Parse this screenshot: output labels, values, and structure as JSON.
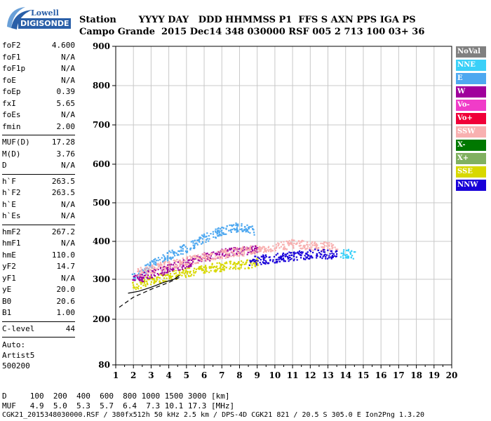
{
  "logo": {
    "line1": "Lowell",
    "line2": "DIGISONDE"
  },
  "header": {
    "row1": "Station       YYYY DAY   DDD HHMMSS P1  FFS S AXN PPS IGA PS",
    "row2": "Campo Grande  2015 Dec14 348 030000 RSF 005 2 713 100 03+ 36"
  },
  "params": [
    [
      {
        "k": "foF2",
        "v": "4.600"
      },
      {
        "k": "foF1",
        "v": "N/A"
      },
      {
        "k": "foF1p",
        "v": "N/A"
      },
      {
        "k": "foE",
        "v": "N/A"
      },
      {
        "k": "foEp",
        "v": "0.39"
      },
      {
        "k": "fxI",
        "v": "5.65"
      },
      {
        "k": "foEs",
        "v": "N/A"
      },
      {
        "k": "fmin",
        "v": "2.00"
      }
    ],
    [
      {
        "k": "MUF(D)",
        "v": "17.28"
      },
      {
        "k": "M(D)",
        "v": "3.76"
      },
      {
        "k": "D",
        "v": "N/A"
      }
    ],
    [
      {
        "k": "h`F",
        "v": "263.5"
      },
      {
        "k": "h`F2",
        "v": "263.5"
      },
      {
        "k": "h`E",
        "v": "N/A"
      },
      {
        "k": "h`Es",
        "v": "N/A"
      }
    ],
    [
      {
        "k": "hmF2",
        "v": "267.2"
      },
      {
        "k": "hmF1",
        "v": "N/A"
      },
      {
        "k": "hmE",
        "v": "110.0"
      },
      {
        "k": "yF2",
        "v": "14.7"
      },
      {
        "k": "yF1",
        "v": "N/A"
      },
      {
        "k": "yE",
        "v": "20.0"
      },
      {
        "k": "B0",
        "v": "20.6"
      },
      {
        "k": "B1",
        "v": "1.00"
      }
    ],
    [
      {
        "k": "C-level",
        "v": "44"
      }
    ]
  ],
  "auto": {
    "line1": "Auto:",
    "line2": "Artist5",
    "line3": "500200"
  },
  "footer": {
    "d_row": "D     100  200  400  600  800 1000 1500 3000 [km]",
    "muf_row": "MUF   4.9  5.0  5.3  5.7  6.4  7.3 10.1 17.3 [MHz]",
    "info_row": "CGK21_2015348030000.RSF / 380fx512h 50 kHz 2.5 km / DPS-4D CGK21 821 / 20.5 S 305.0 E Ion2Png 1.3.20"
  },
  "legend": [
    {
      "label": "NoVal",
      "color": "#808080"
    },
    {
      "label": "NNE",
      "color": "#3ad0f8"
    },
    {
      "label": "E",
      "color": "#4ea8f0"
    },
    {
      "label": "W",
      "color": "#a0009c"
    },
    {
      "label": "Vo-",
      "color": "#f03cc8"
    },
    {
      "label": "Vo+",
      "color": "#f00038"
    },
    {
      "label": "SSW",
      "color": "#f8b0b0"
    },
    {
      "label": "X-",
      "color": "#007800"
    },
    {
      "label": "X+",
      "color": "#80b060"
    },
    {
      "label": "SSE",
      "color": "#d8d800"
    },
    {
      "label": "NNW",
      "color": "#1800d8"
    }
  ],
  "chart_data": {
    "type": "scatter",
    "title": "",
    "xlabel": "",
    "ylabel": "",
    "x_ticks": [
      1,
      2,
      3,
      4,
      5,
      6,
      7,
      8,
      9,
      10,
      11,
      12,
      13,
      14,
      15,
      16,
      17,
      18,
      19,
      20
    ],
    "y_ticks": [
      80,
      200,
      300,
      400,
      500,
      600,
      700,
      800,
      900
    ],
    "xlim": [
      1,
      20
    ],
    "ylim": [
      80,
      900
    ],
    "y_scale": "nonlinear",
    "grid": true,
    "series": [
      {
        "name": "E",
        "color": "#4ea8f0",
        "trend": [
          [
            1.9,
            305
          ],
          [
            3,
            340
          ],
          [
            4,
            365
          ],
          [
            5,
            385
          ],
          [
            6,
            410
          ],
          [
            7,
            430
          ],
          [
            8,
            440
          ],
          [
            8.8,
            430
          ]
        ]
      },
      {
        "name": "SSE",
        "color": "#d8d800",
        "trend": [
          [
            1.9,
            285
          ],
          [
            3,
            300
          ],
          [
            4,
            310
          ],
          [
            5,
            320
          ],
          [
            6,
            330
          ],
          [
            7,
            335
          ],
          [
            8,
            340
          ],
          [
            9,
            345
          ]
        ]
      },
      {
        "name": "W",
        "color": "#a0009c",
        "trend": [
          [
            1.9,
            300
          ],
          [
            3,
            315
          ],
          [
            4,
            330
          ],
          [
            5,
            345
          ],
          [
            6,
            360
          ],
          [
            7,
            370
          ],
          [
            8,
            375
          ],
          [
            9,
            380
          ]
        ]
      },
      {
        "name": "SSW",
        "color": "#f8b0b0",
        "trend": [
          [
            2.2,
            320
          ],
          [
            4,
            340
          ],
          [
            6,
            360
          ],
          [
            8,
            375
          ],
          [
            10,
            385
          ],
          [
            11,
            395
          ],
          [
            12.2,
            390
          ],
          [
            13.5,
            385
          ]
        ]
      },
      {
        "name": "NNW",
        "color": "#1800d8",
        "trend": [
          [
            8.5,
            350
          ],
          [
            9.5,
            355
          ],
          [
            10.5,
            360
          ],
          [
            12.4,
            370
          ],
          [
            13.5,
            365
          ]
        ]
      },
      {
        "name": "NNE",
        "color": "#3ad0f8",
        "trend": [
          [
            13.6,
            370
          ],
          [
            14.5,
            368
          ]
        ]
      }
    ],
    "traces": [
      {
        "name": "o-trace",
        "color": "#000000",
        "points": [
          [
            1.7,
            265
          ],
          [
            2.3,
            270
          ],
          [
            3,
            280
          ],
          [
            3.7,
            292
          ],
          [
            4.3,
            300
          ],
          [
            4.6,
            310
          ]
        ]
      },
      {
        "name": "x-trace",
        "color": "#000000",
        "dashed": true,
        "points": [
          [
            1.2,
            230
          ],
          [
            2,
            255
          ],
          [
            3,
            275
          ],
          [
            4,
            292
          ],
          [
            4.6,
            305
          ]
        ]
      }
    ]
  }
}
